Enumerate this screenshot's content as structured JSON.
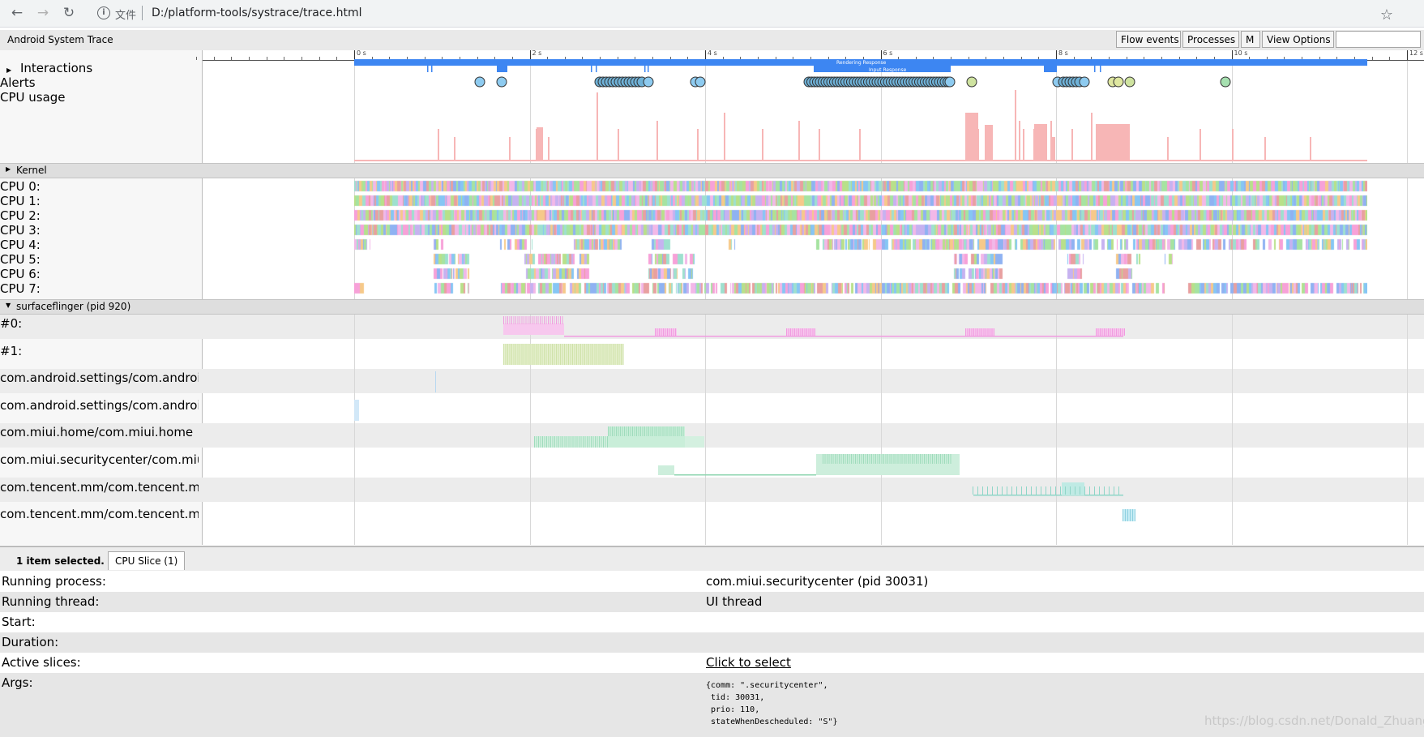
{
  "browser": {
    "back_icon": "arrow-left-icon",
    "forward_icon": "arrow-right-icon",
    "reload_icon": "reload-icon",
    "info_icon": "info-icon",
    "scheme_label": "文件",
    "url": "D:/platform-tools/systrace/trace.html",
    "bookmark_icon": "star-icon"
  },
  "app": {
    "title": "Android System Trace",
    "buttons": [
      "Flow events",
      "Processes",
      "M",
      "View Options"
    ],
    "search_value": ""
  },
  "ruler": {
    "labels": [
      "0 s",
      "2 s",
      "4 s",
      "6 s",
      "8 s",
      "10 s",
      "12 s"
    ]
  },
  "tracks": {
    "interactions": "Interactions",
    "alerts": "Alerts",
    "cpu_usage": "CPU usage",
    "interaction_labels": [
      "Rendering Response",
      "Input Response"
    ],
    "kernel": "Kernel",
    "cpus": [
      "CPU 0:",
      "CPU 1:",
      "CPU 2:",
      "CPU 3:",
      "CPU 4:",
      "CPU 5:",
      "CPU 6:",
      "CPU 7:"
    ],
    "process_header": "surfaceflinger (pid 920)",
    "threads": [
      "#0:",
      "#1:",
      "com.android.settings/com.android.settings",
      "com.android.settings/com.android.settings",
      "com.miui.home/com.miui.home",
      "com.miui.securitycenter/com.miui.securitycenter",
      "com.tencent.mm/com.tencent.mm",
      "com.tencent.mm/com.tencent.mm"
    ]
  },
  "colors": {
    "interaction_blue": "#3d86f2",
    "cpu_usage_pink": "#f7b6b6",
    "frame_pink": "#f19be0",
    "frame_green": "#cfe2a8",
    "alert_blue": "#8ecbf0",
    "alert_green": "#a6e0b0"
  },
  "panel": {
    "selection_count": "1 item selected.",
    "tab_label": "CPU Slice (1)",
    "rows": [
      {
        "key": "Running process:",
        "value": "com.miui.securitycenter (pid 30031)"
      },
      {
        "key": "Running thread:",
        "value": "UI thread"
      },
      {
        "key": "Start:",
        "value": ""
      },
      {
        "key": "Duration:",
        "value": ""
      },
      {
        "key": "Active slices:",
        "value": "Click to select"
      },
      {
        "key": "Args:",
        "value": ""
      }
    ],
    "args_text": "{comm: \".securitycenter\",\n tid: 30031,\n prio: 110,\n stateWhenDescheduled: \"S\"}"
  },
  "watermark": "https://blog.csdn.net/Donald_Zhuang"
}
